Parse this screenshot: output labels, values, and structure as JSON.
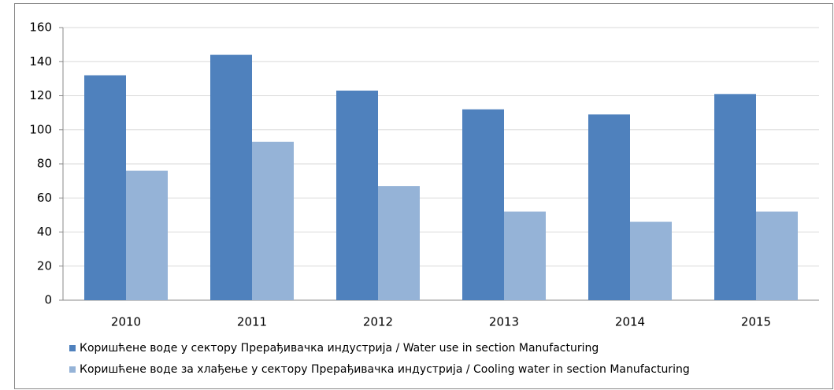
{
  "chart_data": {
    "type": "bar",
    "categories": [
      "2010",
      "2011",
      "2012",
      "2013",
      "2014",
      "2015"
    ],
    "series": [
      {
        "name": "Коришћене воде у сектору Прерађивачка индустрија / Water use in section Manufacturing",
        "color": "#4f81bd",
        "values": [
          132,
          144,
          123,
          112,
          109,
          121
        ]
      },
      {
        "name": "Коришћене воде за хлађење у сектору Прерађивачка индустрија / Cooling water in section Manufacturing",
        "color": "#95b3d7",
        "values": [
          76,
          93,
          67,
          52,
          46,
          52
        ]
      }
    ],
    "ylim": [
      0,
      160
    ],
    "yticks": [
      0,
      20,
      40,
      60,
      80,
      100,
      120,
      140,
      160
    ],
    "grid": true,
    "legend": "bottom"
  }
}
